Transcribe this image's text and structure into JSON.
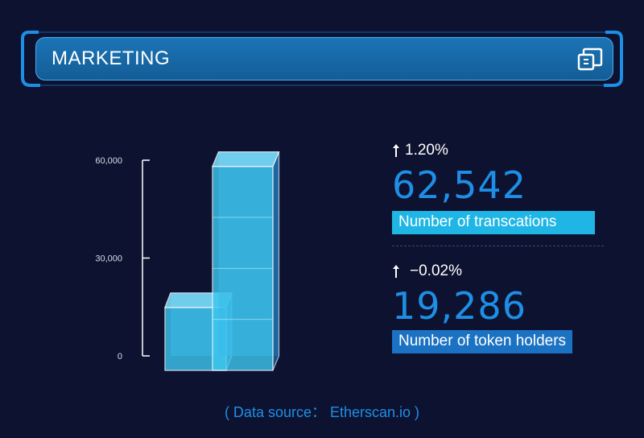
{
  "header": {
    "title": "MARKETING",
    "action_icon": "copy-icon"
  },
  "chart_data": {
    "type": "bar",
    "categories": [
      "Number of token holders",
      "Number of transcations"
    ],
    "values": [
      19286,
      62542
    ],
    "ylim": [
      0,
      60000
    ],
    "yticks": [
      "60,000",
      "30,000",
      "0"
    ],
    "title": "",
    "xlabel": "",
    "ylabel": "",
    "colors": {
      "front": "#3dc8f0",
      "back": "#2a86c6",
      "edge": "#e6f6ff"
    }
  },
  "stats": [
    {
      "change": "1.20%",
      "value": "62,542",
      "label": "Number of transcations",
      "label_color": "#1fb6e6",
      "arrow_icon": "arrow-up-icon"
    },
    {
      "change": "−0.02%",
      "value": "19,286",
      "label": "Number of token holders",
      "label_color": "#1b72c2",
      "arrow_icon": "arrow-up-icon"
    }
  ],
  "footer": {
    "source": "( Data source： Etherscan.io )"
  }
}
